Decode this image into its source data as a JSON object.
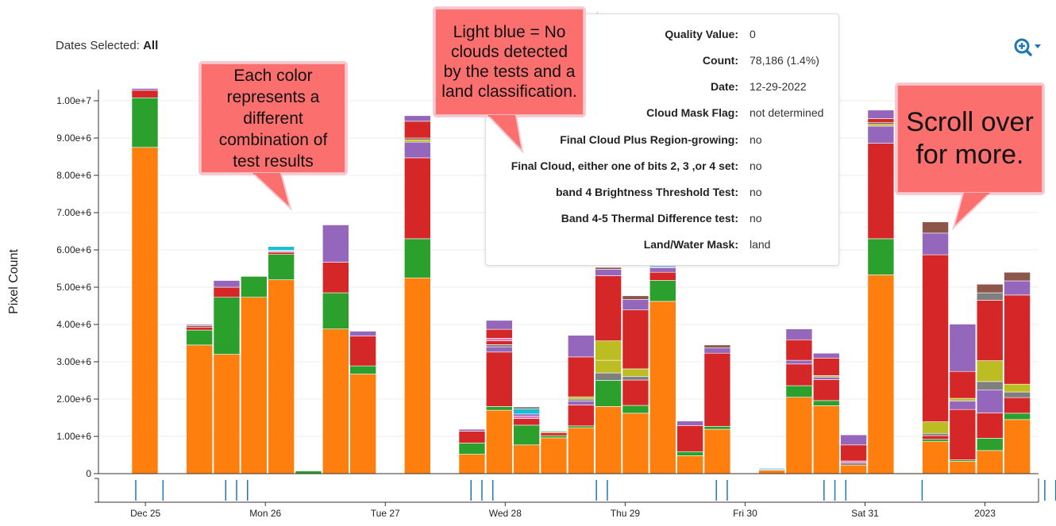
{
  "header": {
    "title_partial": "ats",
    "dates_selected_label": "Dates Selected:",
    "dates_selected_value": "All"
  },
  "zoom": {
    "icon": "zoom-in-icon",
    "dropdown_icon": "caret-down-icon"
  },
  "tooltip": {
    "rows": [
      {
        "key": "Quality Value:",
        "value": "0"
      },
      {
        "key": "Count:",
        "value": "78,186 (1.4%)"
      },
      {
        "key": "Date:",
        "value": "12-29-2022"
      },
      {
        "key": "Cloud Mask Flag:",
        "value": "not determined"
      },
      {
        "key": "Final Cloud Plus Region-growing:",
        "value": "no"
      },
      {
        "key": "Final Cloud, either one of bits 2, 3 ,or 4 set:",
        "value": "no"
      },
      {
        "key": "band 4 Brightness Threshold Test:",
        "value": "no"
      },
      {
        "key": "Band 4-5 Thermal Difference test:",
        "value": "no"
      },
      {
        "key": "Land/Water Mask:",
        "value": "land"
      }
    ]
  },
  "callouts": {
    "colors": {
      "text": "Each color represents a different combination of test results"
    },
    "light_blue": {
      "text": "Light blue = No clouds detected by the tests and a land classification."
    },
    "scroll": {
      "text": "Scroll over for more."
    }
  },
  "chart_data": {
    "type": "bar",
    "stacked": true,
    "title": "",
    "xlabel": "",
    "ylabel": "Pixel Count",
    "ylim": [
      0,
      10300000
    ],
    "y_ticks": [
      "0",
      "1.00e+6",
      "2.00e+6",
      "3.00e+6",
      "4.00e+6",
      "5.00e+6",
      "6.00e+6",
      "7.00e+6",
      "8.00e+6",
      "9.00e+6",
      "1.00e+7"
    ],
    "y_tick_values": [
      0,
      1000000,
      2000000,
      3000000,
      4000000,
      5000000,
      6000000,
      7000000,
      8000000,
      9000000,
      10000000
    ],
    "x_ticks": [
      {
        "label": "Dec 25",
        "x": 0.5
      },
      {
        "label": "Mon 26",
        "x": 4.9
      },
      {
        "label": "Tue 27",
        "x": 9.3
      },
      {
        "label": "Wed 28",
        "x": 13.7
      },
      {
        "label": "Thu 29",
        "x": 18.1
      },
      {
        "label": "Fri 30",
        "x": 22.5
      },
      {
        "label": "Sat 31",
        "x": 26.9
      },
      {
        "label": "2023",
        "x": 31.3
      }
    ],
    "grid": true,
    "legend": "none",
    "colors": {
      "orange": "#ff7f0e",
      "green": "#2ca02c",
      "red": "#d62728",
      "purple": "#9467bd",
      "brown": "#8c564b",
      "pink": "#e377c2",
      "gray": "#7f7f7f",
      "olive": "#bcbd22",
      "cyan": "#17becf",
      "light_blue": "#aec7e8"
    },
    "bars": [
      {
        "x": 0,
        "segments": [
          [
            "orange",
            8750000
          ],
          [
            "green",
            1330000
          ],
          [
            "red",
            200000
          ],
          [
            "purple",
            50000
          ]
        ]
      },
      {
        "x": 2,
        "segments": [
          [
            "orange",
            3450000
          ],
          [
            "green",
            400000
          ],
          [
            "red",
            80000
          ],
          [
            "brown",
            40000
          ],
          [
            "purple",
            30000
          ]
        ]
      },
      {
        "x": 3,
        "segments": [
          [
            "orange",
            3200000
          ],
          [
            "green",
            1530000
          ],
          [
            "red",
            270000
          ],
          [
            "purple",
            180000
          ]
        ]
      },
      {
        "x": 4,
        "segments": [
          [
            "orange",
            4730000
          ],
          [
            "green",
            560000
          ]
        ]
      },
      {
        "x": 5,
        "segments": [
          [
            "orange",
            5200000
          ],
          [
            "green",
            680000
          ],
          [
            "red",
            60000
          ],
          [
            "light_blue",
            50000
          ],
          [
            "cyan",
            100000
          ]
        ]
      },
      {
        "x": 6,
        "segments": [
          [
            "green",
            70000
          ]
        ]
      },
      {
        "x": 7,
        "segments": [
          [
            "orange",
            3880000
          ],
          [
            "green",
            970000
          ],
          [
            "red",
            820000
          ],
          [
            "purple",
            1000000
          ]
        ]
      },
      {
        "x": 8,
        "segments": [
          [
            "orange",
            2670000
          ],
          [
            "green",
            220000
          ],
          [
            "red",
            800000
          ],
          [
            "purple",
            130000
          ]
        ]
      },
      {
        "x": 10,
        "segments": [
          [
            "orange",
            5250000
          ],
          [
            "green",
            1050000
          ],
          [
            "red",
            2170000
          ],
          [
            "purple",
            420000
          ],
          [
            "olive",
            60000
          ],
          [
            "brown",
            50000
          ],
          [
            "red",
            450000
          ],
          [
            "purple",
            150000
          ]
        ]
      },
      {
        "x": 12,
        "segments": [
          [
            "orange",
            520000
          ],
          [
            "green",
            300000
          ],
          [
            "red",
            320000
          ],
          [
            "purple",
            50000
          ]
        ]
      },
      {
        "x": 13,
        "segments": [
          [
            "orange",
            1700000
          ],
          [
            "green",
            100000
          ],
          [
            "red",
            1460000
          ],
          [
            "purple",
            140000
          ],
          [
            "gray",
            60000
          ],
          [
            "red",
            100000
          ],
          [
            "pink",
            70000
          ],
          [
            "red",
            240000
          ],
          [
            "purple",
            240000
          ]
        ]
      },
      {
        "x": 14,
        "segments": [
          [
            "orange",
            770000
          ],
          [
            "green",
            530000
          ],
          [
            "red",
            180000
          ],
          [
            "pink",
            60000
          ],
          [
            "purple",
            60000
          ],
          [
            "cyan",
            130000
          ],
          [
            "gray",
            60000
          ]
        ]
      },
      {
        "x": 15,
        "segments": [
          [
            "orange",
            960000
          ],
          [
            "green",
            60000
          ],
          [
            "red",
            80000
          ],
          [
            "olive",
            30000
          ],
          [
            "cyan",
            20000
          ]
        ]
      },
      {
        "x": 16,
        "segments": [
          [
            "orange",
            1230000
          ],
          [
            "green",
            50000
          ],
          [
            "red",
            560000
          ],
          [
            "purple",
            110000
          ],
          [
            "gray",
            50000
          ],
          [
            "olive",
            60000
          ],
          [
            "red",
            1070000
          ],
          [
            "purple",
            580000
          ]
        ]
      },
      {
        "x": 17,
        "segments": [
          [
            "orange",
            1800000
          ],
          [
            "green",
            700000
          ],
          [
            "gray",
            200000
          ],
          [
            "olive",
            340000
          ],
          [
            "olive",
            520000
          ],
          [
            "red",
            1750000
          ],
          [
            "purple",
            170000
          ],
          [
            "brown",
            50000
          ]
        ]
      },
      {
        "x": 18,
        "segments": [
          [
            "orange",
            1620000
          ],
          [
            "green",
            210000
          ],
          [
            "red",
            680000
          ],
          [
            "gray",
            100000
          ],
          [
            "olive",
            200000
          ],
          [
            "red",
            1580000
          ],
          [
            "purple",
            280000
          ],
          [
            "brown",
            100000
          ]
        ]
      },
      {
        "x": 19,
        "segments": [
          [
            "orange",
            4620000
          ],
          [
            "green",
            560000
          ],
          [
            "red",
            220000
          ],
          [
            "purple",
            120000
          ],
          [
            "light_blue",
            60000
          ]
        ]
      },
      {
        "x": 20,
        "segments": [
          [
            "orange",
            480000
          ],
          [
            "green",
            110000
          ],
          [
            "red",
            700000
          ],
          [
            "purple",
            120000
          ]
        ]
      },
      {
        "x": 21,
        "segments": [
          [
            "orange",
            1190000
          ],
          [
            "green",
            80000
          ],
          [
            "red",
            1960000
          ],
          [
            "purple",
            140000
          ],
          [
            "brown",
            80000
          ]
        ]
      },
      {
        "x": 23,
        "segments": [
          [
            "orange",
            90000
          ],
          [
            "light_blue",
            40000
          ],
          [
            "cyan",
            20000
          ]
        ]
      },
      {
        "x": 24,
        "segments": [
          [
            "orange",
            2050000
          ],
          [
            "green",
            310000
          ],
          [
            "red",
            580000
          ],
          [
            "purple",
            100000
          ],
          [
            "red",
            550000
          ],
          [
            "purple",
            290000
          ]
        ]
      },
      {
        "x": 25,
        "segments": [
          [
            "orange",
            1820000
          ],
          [
            "green",
            140000
          ],
          [
            "red",
            560000
          ],
          [
            "purple",
            70000
          ],
          [
            "olive",
            40000
          ],
          [
            "red",
            470000
          ],
          [
            "purple",
            130000
          ]
        ]
      },
      {
        "x": 26,
        "segments": [
          [
            "orange",
            230000
          ],
          [
            "gray",
            60000
          ],
          [
            "pink",
            50000
          ],
          [
            "red",
            430000
          ],
          [
            "purple",
            270000
          ]
        ]
      },
      {
        "x": 27,
        "segments": [
          [
            "orange",
            5330000
          ],
          [
            "green",
            970000
          ],
          [
            "red",
            2560000
          ],
          [
            "purple",
            460000
          ],
          [
            "olive",
            50000
          ],
          [
            "brown",
            50000
          ],
          [
            "red",
            100000
          ],
          [
            "purple",
            230000
          ]
        ]
      },
      {
        "x": 28,
        "segments": [
          [
            "orange",
            20000
          ]
        ]
      },
      {
        "x": 29,
        "segments": [
          [
            "orange",
            860000
          ],
          [
            "green",
            60000
          ],
          [
            "red",
            100000
          ],
          [
            "gray",
            60000
          ],
          [
            "olive",
            310000
          ],
          [
            "red",
            4480000
          ],
          [
            "purple",
            580000
          ],
          [
            "brown",
            300000
          ]
        ]
      },
      {
        "x": 30,
        "segments": [
          [
            "orange",
            330000
          ],
          [
            "green",
            40000
          ],
          [
            "red",
            1350000
          ],
          [
            "purple",
            230000
          ],
          [
            "olive",
            70000
          ],
          [
            "red",
            720000
          ],
          [
            "purple",
            1270000
          ]
        ]
      },
      {
        "x": 31,
        "segments": [
          [
            "orange",
            620000
          ],
          [
            "green",
            330000
          ],
          [
            "red",
            680000
          ],
          [
            "purple",
            610000
          ],
          [
            "gray",
            230000
          ],
          [
            "olive",
            560000
          ],
          [
            "red",
            1620000
          ],
          [
            "gray",
            200000
          ],
          [
            "brown",
            230000
          ]
        ]
      },
      {
        "x": 32,
        "segments": [
          [
            "orange",
            1450000
          ],
          [
            "green",
            170000
          ],
          [
            "red",
            420000
          ],
          [
            "gray",
            150000
          ],
          [
            "olive",
            210000
          ],
          [
            "red",
            2390000
          ],
          [
            "purple",
            380000
          ],
          [
            "brown",
            230000
          ]
        ]
      }
    ],
    "navigator_ticks_x": [
      0.65,
      -0.35,
      2.95,
      3.35,
      3.75,
      11.95,
      12.35,
      12.75,
      16.55,
      16.95,
      20.95,
      21.35,
      24.9,
      25.3,
      25.7,
      28.5,
      33.0,
      33.4,
      33.8
    ]
  }
}
